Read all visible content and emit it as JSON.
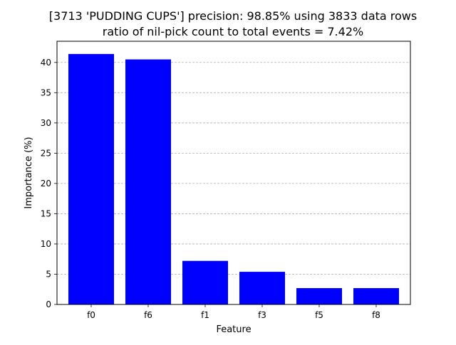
{
  "chart_data": {
    "type": "bar",
    "title_line1": "[3713 'PUDDING CUPS'] precision: 98.85% using 3833 data rows",
    "title_line2": "ratio of nil-pick count to total events = 7.42%",
    "xlabel": "Feature",
    "ylabel": "Importance (%)",
    "categories": [
      "f0",
      "f6",
      "f1",
      "f3",
      "f5",
      "f8"
    ],
    "values": [
      41.4,
      40.5,
      7.2,
      5.4,
      2.7,
      2.7
    ],
    "ylim": [
      0,
      43.5
    ],
    "yticks": [
      0,
      5,
      10,
      15,
      20,
      25,
      30,
      35,
      40
    ],
    "grid": "y-dashed",
    "bar_color": "#0000ff",
    "grid_color": "#b0b0b0"
  }
}
